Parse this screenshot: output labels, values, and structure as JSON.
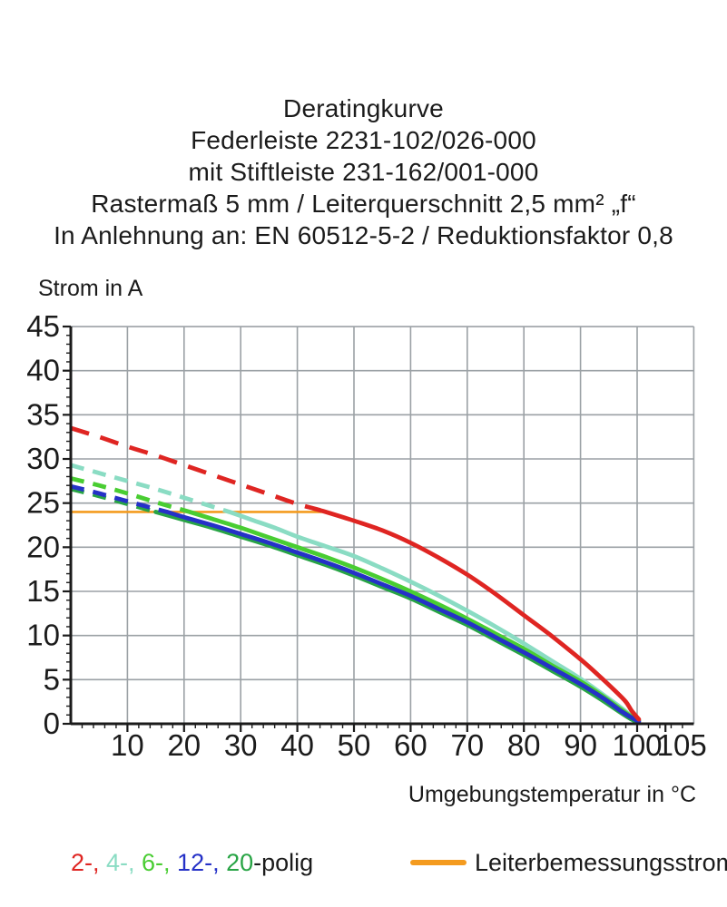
{
  "title_lines": [
    "Deratingkurve",
    "Federleiste 2231-102/026-000",
    "mit Stiftleiste 231-162/001-000",
    "Rastermaß 5 mm / Leiterquerschnitt 2,5 mm² „f“",
    "In Anlehnung an: EN 60512-5-2 / Reduktionsfaktor 0,8"
  ],
  "chart_data": {
    "type": "line",
    "title": "Deratingkurve",
    "ylabel": "Strom in A",
    "xlabel": "Umgebungstemperatur in °C",
    "xlim": [
      0,
      110
    ],
    "ylim": [
      0,
      45
    ],
    "x_major_ticks": [
      10,
      20,
      30,
      40,
      50,
      60,
      70,
      80,
      90,
      100,
      105
    ],
    "x_minor_step": 2,
    "y_major_ticks": [
      45,
      40,
      35,
      30,
      25,
      20,
      15,
      10,
      5,
      0
    ],
    "y_minor_step": 1,
    "grid": true,
    "grid_color": "#9ba1a5",
    "axis_color": "#1b1b1b",
    "reference_line": {
      "name": "Leiterbemessungsstrom",
      "value": 24,
      "x_start": 0,
      "x_end": 45,
      "color": "#f49b1f"
    },
    "series": [
      {
        "name": "4-polig",
        "color": "#8adcc3",
        "dashed": [
          [
            0,
            29.3
          ],
          [
            5,
            28.4
          ],
          [
            10,
            27.5
          ],
          [
            15,
            26.6
          ],
          [
            20,
            25.6
          ],
          [
            25,
            24.6
          ],
          [
            28,
            24.0
          ]
        ],
        "solid": [
          [
            28,
            24.0
          ],
          [
            32,
            23.1
          ],
          [
            36,
            22.2
          ],
          [
            40,
            21.2
          ],
          [
            45,
            20.1
          ],
          [
            50,
            19.0
          ],
          [
            55,
            17.6
          ],
          [
            60,
            16.1
          ],
          [
            65,
            14.5
          ],
          [
            70,
            12.8
          ],
          [
            75,
            11.0
          ],
          [
            80,
            9.1
          ],
          [
            85,
            7.1
          ],
          [
            90,
            5.1
          ],
          [
            94,
            3.3
          ],
          [
            97,
            1.9
          ],
          [
            99,
            0.9
          ],
          [
            100.3,
            0.4
          ]
        ]
      },
      {
        "name": "6-polig",
        "color": "#49cd32",
        "dashed": [
          [
            0,
            27.8
          ],
          [
            5,
            27.0
          ],
          [
            10,
            26.1
          ],
          [
            15,
            25.1
          ],
          [
            21,
            24.0
          ]
        ],
        "solid": [
          [
            21,
            24.0
          ],
          [
            25,
            23.2
          ],
          [
            30,
            22.2
          ],
          [
            35,
            21.1
          ],
          [
            40,
            20.0
          ],
          [
            45,
            18.9
          ],
          [
            50,
            17.7
          ],
          [
            55,
            16.4
          ],
          [
            60,
            15.0
          ],
          [
            65,
            13.5
          ],
          [
            70,
            11.9
          ],
          [
            75,
            10.2
          ],
          [
            80,
            8.5
          ],
          [
            85,
            6.6
          ],
          [
            90,
            4.8
          ],
          [
            94,
            3.1
          ],
          [
            97,
            1.7
          ],
          [
            99,
            0.8
          ],
          [
            100.3,
            0.35
          ]
        ]
      },
      {
        "name": "20-polig",
        "color": "#28a445",
        "dashed": [
          [
            0,
            26.6
          ],
          [
            5,
            25.8
          ],
          [
            10,
            24.9
          ],
          [
            15,
            24.0
          ]
        ],
        "solid": [
          [
            15,
            24.0
          ],
          [
            20,
            23.1
          ],
          [
            25,
            22.2
          ],
          [
            30,
            21.2
          ],
          [
            35,
            20.2
          ],
          [
            40,
            19.1
          ],
          [
            45,
            18.0
          ],
          [
            50,
            16.8
          ],
          [
            55,
            15.5
          ],
          [
            60,
            14.2
          ],
          [
            65,
            12.7
          ],
          [
            70,
            11.2
          ],
          [
            75,
            9.5
          ],
          [
            80,
            7.8
          ],
          [
            85,
            6.0
          ],
          [
            90,
            4.2
          ],
          [
            94,
            2.6
          ],
          [
            97,
            1.3
          ],
          [
            99,
            0.5
          ],
          [
            100.3,
            0.1
          ]
        ]
      },
      {
        "name": "12-polig",
        "color": "#2531c7",
        "dashed": [
          [
            0,
            26.9
          ],
          [
            5,
            26.1
          ],
          [
            10,
            25.2
          ],
          [
            17,
            24.0
          ]
        ],
        "solid": [
          [
            17,
            24.0
          ],
          [
            20,
            23.4
          ],
          [
            25,
            22.5
          ],
          [
            30,
            21.5
          ],
          [
            35,
            20.5
          ],
          [
            40,
            19.4
          ],
          [
            45,
            18.3
          ],
          [
            50,
            17.1
          ],
          [
            55,
            15.8
          ],
          [
            60,
            14.5
          ],
          [
            65,
            13.0
          ],
          [
            70,
            11.5
          ],
          [
            75,
            9.8
          ],
          [
            80,
            8.1
          ],
          [
            85,
            6.3
          ],
          [
            90,
            4.5
          ],
          [
            94,
            2.9
          ],
          [
            97,
            1.5
          ],
          [
            99,
            0.7
          ],
          [
            100.3,
            0.25
          ]
        ]
      },
      {
        "name": "2-polig",
        "color": "#df2522",
        "dashed": [
          [
            0,
            33.5
          ],
          [
            5,
            32.5
          ],
          [
            10,
            31.4
          ],
          [
            15,
            30.4
          ],
          [
            20,
            29.3
          ],
          [
            25,
            28.2
          ],
          [
            30,
            27.1
          ],
          [
            35,
            26.0
          ],
          [
            40,
            24.9
          ],
          [
            44,
            24.2
          ]
        ],
        "solid": [
          [
            44,
            24.2
          ],
          [
            50,
            23.0
          ],
          [
            55,
            21.9
          ],
          [
            60,
            20.5
          ],
          [
            65,
            18.8
          ],
          [
            70,
            16.9
          ],
          [
            75,
            14.7
          ],
          [
            80,
            12.3
          ],
          [
            85,
            9.9
          ],
          [
            90,
            7.3
          ],
          [
            93,
            5.6
          ],
          [
            96,
            3.8
          ],
          [
            98,
            2.5
          ],
          [
            99,
            1.5
          ],
          [
            100.3,
            0.5
          ]
        ]
      }
    ]
  },
  "legend": {
    "poles": [
      {
        "text": "2-, ",
        "color": "#df2522"
      },
      {
        "text": "4-, ",
        "color": "#8adcc3"
      },
      {
        "text": "6-, ",
        "color": "#49cd32"
      },
      {
        "text": "12-, ",
        "color": "#2531c7"
      },
      {
        "text": "20",
        "color": "#28a445"
      },
      {
        "text": "-polig",
        "color": "#1b1b1b"
      }
    ],
    "reference_label": "Leiterbemessungsstrom"
  }
}
